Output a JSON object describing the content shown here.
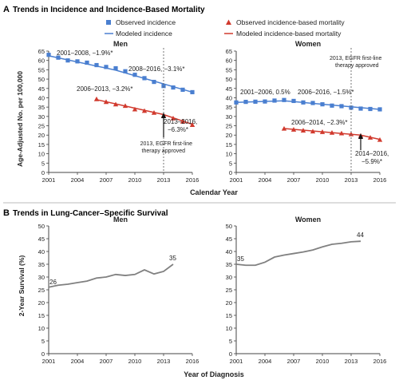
{
  "colors": {
    "incidence": "#4a7fd0",
    "mortality": "#d13a2e",
    "survival": "#808080",
    "axis": "#444444",
    "separator": "#bbbbbb"
  },
  "sections": {
    "a": {
      "letter": "A",
      "title": "Trends in Incidence and Incidence-Based Mortality"
    },
    "b": {
      "letter": "B",
      "title": "Trends in Lung-Cancer–Specific Survival"
    }
  },
  "legend": {
    "observed_incidence": "Observed incidence",
    "modeled_incidence": "Modeled incidence",
    "observed_mortality": "Observed incidence-based mortality",
    "modeled_mortality": "Modeled incidence-based mortality"
  },
  "axes": {
    "a_ylabel": "Age-Adjusted No. per 100,000",
    "a_xlabel": "Calendar Year",
    "b_ylabel": "2-Year Survival (%)",
    "b_xlabel": "Year of Diagnosis"
  },
  "chart_data": [
    {
      "type": "scatter",
      "panel": "A-Men",
      "title": "Men",
      "xlim": [
        2001,
        2016
      ],
      "ylim": [
        0,
        65
      ],
      "x_ticks": [
        2001,
        2004,
        2007,
        2010,
        2013,
        2016
      ],
      "y_ticks": [
        0,
        5,
        10,
        15,
        20,
        25,
        30,
        35,
        40,
        45,
        50,
        55,
        60,
        65
      ],
      "series": [
        {
          "name": "Observed incidence",
          "x": [
            2001,
            2002,
            2003,
            2004,
            2005,
            2006,
            2007,
            2008,
            2009,
            2010,
            2011,
            2012,
            2013,
            2014,
            2015,
            2016
          ],
          "y": [
            63.0,
            61.5,
            60.0,
            59.5,
            58.8,
            57.5,
            56.5,
            55.8,
            54.2,
            52.3,
            50.5,
            48.5,
            46.3,
            45.5,
            44.3,
            43.0
          ]
        },
        {
          "name": "Modeled incidence",
          "x": [
            2001,
            2008,
            2016
          ],
          "y": [
            62.5,
            54.8,
            43.0
          ]
        },
        {
          "name": "Observed incidence-based mortality",
          "x": [
            2006,
            2007,
            2008,
            2009,
            2010,
            2011,
            2012,
            2013,
            2014,
            2015,
            2016
          ],
          "y": [
            39.3,
            37.8,
            36.5,
            35.7,
            33.8,
            33.0,
            32.0,
            30.5,
            29.0,
            27.3,
            25.5
          ]
        },
        {
          "name": "Modeled incidence-based mortality",
          "x": [
            2006,
            2013,
            2016
          ],
          "y": [
            39.0,
            31.0,
            25.8
          ]
        }
      ],
      "annotations": [
        {
          "text": "2001–2008, −1.9%*"
        },
        {
          "text": "2008–2016, −3.1%*"
        },
        {
          "text": "2006–2013, −3.2%*"
        },
        {
          "text": "2013–2016,",
          "text2": "−6.3%*"
        },
        {
          "text": "2013, EGFR first-line",
          "text2": "therapy approved",
          "x": 2013
        }
      ]
    },
    {
      "type": "scatter",
      "panel": "A-Women",
      "title": "Women",
      "xlim": [
        2001,
        2016
      ],
      "ylim": [
        0,
        65
      ],
      "x_ticks": [
        2001,
        2004,
        2007,
        2010,
        2013,
        2016
      ],
      "y_ticks": [
        0,
        5,
        10,
        15,
        20,
        25,
        30,
        35,
        40,
        45,
        50,
        55,
        60,
        65
      ],
      "series": [
        {
          "name": "Observed incidence",
          "x": [
            2001,
            2002,
            2003,
            2004,
            2005,
            2006,
            2007,
            2008,
            2009,
            2010,
            2011,
            2012,
            2013,
            2014,
            2015,
            2016
          ],
          "y": [
            37.5,
            37.8,
            37.9,
            38.0,
            38.5,
            38.8,
            38.3,
            37.5,
            37.2,
            36.5,
            35.8,
            35.5,
            34.7,
            34.2,
            34.0,
            33.8
          ]
        },
        {
          "name": "Modeled incidence",
          "x": [
            2001,
            2006,
            2016
          ],
          "y": [
            37.5,
            38.4,
            33.8
          ]
        },
        {
          "name": "Observed incidence-based mortality",
          "x": [
            2006,
            2007,
            2008,
            2009,
            2010,
            2011,
            2012,
            2013,
            2014,
            2015,
            2016
          ],
          "y": [
            23.5,
            23.0,
            22.5,
            22.0,
            21.7,
            21.3,
            21.0,
            20.5,
            19.7,
            18.7,
            17.5
          ]
        },
        {
          "name": "Modeled incidence-based mortality",
          "x": [
            2006,
            2014,
            2016
          ],
          "y": [
            23.5,
            20.0,
            17.7
          ]
        }
      ],
      "annotations": [
        {
          "text": "2001–2006, 0.5%"
        },
        {
          "text": "2006–2016, −1.5%*"
        },
        {
          "text": "2006–2014, −2.3%*"
        },
        {
          "text": "2014–2016,",
          "text2": "−5.9%*"
        },
        {
          "text": "2013, EGFR first-line",
          "text2": "therapy approved",
          "x": 2013
        }
      ]
    },
    {
      "type": "line",
      "panel": "B-Men",
      "title": "Men",
      "xlim": [
        2001,
        2016
      ],
      "ylim": [
        0,
        50
      ],
      "x_ticks": [
        2001,
        2004,
        2007,
        2010,
        2013,
        2016
      ],
      "y_ticks": [
        0,
        5,
        10,
        15,
        20,
        25,
        30,
        35,
        40,
        45,
        50
      ],
      "series": [
        {
          "name": "2-Year Survival",
          "x": [
            2001,
            2002,
            2003,
            2004,
            2005,
            2006,
            2007,
            2008,
            2009,
            2010,
            2011,
            2012,
            2013,
            2014
          ],
          "y": [
            26,
            26.8,
            27.2,
            27.8,
            28.4,
            29.6,
            30.0,
            31.0,
            30.6,
            31.0,
            32.8,
            31.2,
            32.2,
            35
          ]
        }
      ],
      "end_labels": [
        "26",
        "35"
      ]
    },
    {
      "type": "line",
      "panel": "B-Women",
      "title": "Women",
      "xlim": [
        2001,
        2016
      ],
      "ylim": [
        0,
        50
      ],
      "x_ticks": [
        2001,
        2004,
        2007,
        2010,
        2013,
        2016
      ],
      "y_ticks": [
        0,
        5,
        10,
        15,
        20,
        25,
        30,
        35,
        40,
        45,
        50
      ],
      "series": [
        {
          "name": "2-Year Survival",
          "x": [
            2001,
            2002,
            2003,
            2004,
            2005,
            2006,
            2007,
            2008,
            2009,
            2010,
            2011,
            2012,
            2013,
            2014
          ],
          "y": [
            35,
            34.6,
            34.6,
            35.8,
            37.8,
            38.6,
            39.2,
            39.8,
            40.6,
            41.8,
            42.8,
            43.2,
            43.8,
            44
          ]
        }
      ],
      "end_labels": [
        "35",
        "44"
      ]
    }
  ]
}
